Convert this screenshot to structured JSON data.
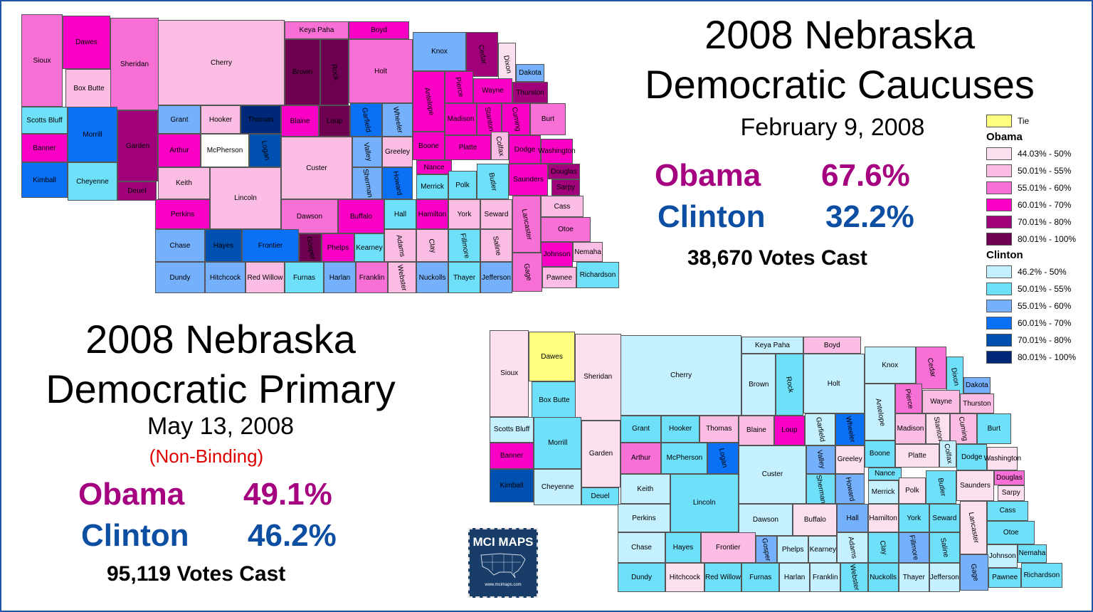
{
  "caucus": {
    "title_line1": "2008 Nebraska",
    "title_line2": "Democratic Caucuses",
    "date": "February 9, 2008",
    "obama_label": "Obama",
    "obama_pct": "67.6%",
    "clinton_label": "Clinton",
    "clinton_pct": "32.2%",
    "votes": "38,670 Votes Cast"
  },
  "primary": {
    "title_line1": "2008 Nebraska",
    "title_line2": "Democratic Primary",
    "date": "May 13, 2008",
    "note": "(Non-Binding)",
    "obama_label": "Obama",
    "obama_pct": "49.1%",
    "clinton_label": "Clinton",
    "clinton_pct": "46.2%",
    "votes": "95,119 Votes Cast"
  },
  "colors": {
    "obama_text": "#a5007f",
    "clinton_text": "#0b4ea2",
    "note_text": "#e00000",
    "border": "#1d56a8",
    "none": "#ffffff"
  },
  "legend": {
    "tie": {
      "label": "Tie",
      "color": "#ffff80"
    },
    "obama_heading": "Obama",
    "obama": [
      {
        "key": "O1",
        "label": "44.03% - 50%",
        "color": "#fde0f0"
      },
      {
        "key": "O2",
        "label": "50.01% - 55%",
        "color": "#fbbde3"
      },
      {
        "key": "O3",
        "label": "55.01% - 60%",
        "color": "#f870d6"
      },
      {
        "key": "O4",
        "label": "60.01% - 70%",
        "color": "#fa00c4"
      },
      {
        "key": "O5",
        "label": "70.01% - 80%",
        "color": "#a0007a"
      },
      {
        "key": "O6",
        "label": "80.01% - 100%",
        "color": "#6d0050"
      }
    ],
    "clinton_heading": "Clinton",
    "clinton": [
      {
        "key": "C1",
        "label": "46.2% - 50%",
        "color": "#c5f0ff"
      },
      {
        "key": "C2",
        "label": "50.01% - 55%",
        "color": "#6fe0fa"
      },
      {
        "key": "C3",
        "label": "55.01% - 60%",
        "color": "#74b0fb"
      },
      {
        "key": "C4",
        "label": "60.01% - 70%",
        "color": "#0a70f5"
      },
      {
        "key": "C5",
        "label": "70.01% - 80%",
        "color": "#0050b0"
      },
      {
        "key": "C6",
        "label": "80.01% - 100%",
        "color": "#002878"
      }
    ]
  },
  "logo": {
    "text": "MCI MAPS",
    "url": "www.mcimaps.com"
  },
  "counties": [
    {
      "name": "Sioux",
      "caucus": "O3",
      "primary": "O1"
    },
    {
      "name": "Dawes",
      "caucus": "O4",
      "primary": "T"
    },
    {
      "name": "Box Butte",
      "caucus": "O2",
      "primary": "C2"
    },
    {
      "name": "Sheridan",
      "caucus": "O3",
      "primary": "O1"
    },
    {
      "name": "Cherry",
      "caucus": "O2",
      "primary": "C1"
    },
    {
      "name": "Keya Paha",
      "caucus": "O3",
      "primary": "C1"
    },
    {
      "name": "Boyd",
      "caucus": "O4",
      "primary": "O2"
    },
    {
      "name": "Brown",
      "caucus": "O6",
      "primary": "C1"
    },
    {
      "name": "Rock",
      "caucus": "O6",
      "primary": "C2"
    },
    {
      "name": "Holt",
      "caucus": "O3",
      "primary": "C1"
    },
    {
      "name": "Knox",
      "caucus": "C3",
      "primary": "C1"
    },
    {
      "name": "Cedar",
      "caucus": "O5",
      "primary": "O3"
    },
    {
      "name": "Dixon",
      "caucus": "O1",
      "primary": "C2"
    },
    {
      "name": "Dakota",
      "caucus": "C3",
      "primary": "C3"
    },
    {
      "name": "Antelope",
      "caucus": "O4",
      "primary": "C1"
    },
    {
      "name": "Pierce",
      "caucus": "O4",
      "primary": "O3"
    },
    {
      "name": "Wayne",
      "caucus": "O4",
      "primary": "O2"
    },
    {
      "name": "Thurston",
      "caucus": "O5",
      "primary": "O2"
    },
    {
      "name": "Madison",
      "caucus": "O4",
      "primary": "O2"
    },
    {
      "name": "Stanton",
      "caucus": "O4",
      "primary": "O1"
    },
    {
      "name": "Cuming",
      "caucus": "O4",
      "primary": "O2"
    },
    {
      "name": "Burt",
      "caucus": "O3",
      "primary": "C2"
    },
    {
      "name": "Scotts Bluff",
      "caucus": "C2",
      "primary": "C1"
    },
    {
      "name": "Banner",
      "caucus": "O4",
      "primary": "O4"
    },
    {
      "name": "Kimball",
      "caucus": "C4",
      "primary": "C5"
    },
    {
      "name": "Morrill",
      "caucus": "C4",
      "primary": "C2"
    },
    {
      "name": "Cheyenne",
      "caucus": "C2",
      "primary": "C1"
    },
    {
      "name": "Garden",
      "caucus": "O5",
      "primary": "O1"
    },
    {
      "name": "Deuel",
      "caucus": "O5",
      "primary": "C2"
    },
    {
      "name": "Grant",
      "caucus": "C3",
      "primary": "C2"
    },
    {
      "name": "Hooker",
      "caucus": "O2",
      "primary": "C2"
    },
    {
      "name": "Thomas",
      "caucus": "C6",
      "primary": "O2"
    },
    {
      "name": "Blaine",
      "caucus": "O4",
      "primary": "O2"
    },
    {
      "name": "Loup",
      "caucus": "O6",
      "primary": "O4"
    },
    {
      "name": "Garfield",
      "caucus": "C4",
      "primary": "C1"
    },
    {
      "name": "Wheeler",
      "caucus": "C3",
      "primary": "C4"
    },
    {
      "name": "Arthur",
      "caucus": "O4",
      "primary": "O3"
    },
    {
      "name": "McPherson",
      "caucus": "none",
      "primary": "C2"
    },
    {
      "name": "Logan",
      "caucus": "C5",
      "primary": "C4"
    },
    {
      "name": "Custer",
      "caucus": "O2",
      "primary": "C1"
    },
    {
      "name": "Valley",
      "caucus": "C3",
      "primary": "C3"
    },
    {
      "name": "Greeley",
      "caucus": "O2",
      "primary": "O1"
    },
    {
      "name": "Boone",
      "caucus": "O4",
      "primary": "C2"
    },
    {
      "name": "Platte",
      "caucus": "O4",
      "primary": "O1"
    },
    {
      "name": "Colfax",
      "caucus": "O2",
      "primary": "C1"
    },
    {
      "name": "Dodge",
      "caucus": "O4",
      "primary": "C2"
    },
    {
      "name": "Washington",
      "caucus": "O4",
      "primary": "O1"
    },
    {
      "name": "Keith",
      "caucus": "O2",
      "primary": "C1"
    },
    {
      "name": "Sherman",
      "caucus": "C3",
      "primary": "C2"
    },
    {
      "name": "Howard",
      "caucus": "C4",
      "primary": "C3"
    },
    {
      "name": "Nance",
      "caucus": "O4",
      "primary": "C2"
    },
    {
      "name": "Merrick",
      "caucus": "C2",
      "primary": "C1"
    },
    {
      "name": "Polk",
      "caucus": "C2",
      "primary": "O1"
    },
    {
      "name": "Butler",
      "caucus": "C2",
      "primary": "C2"
    },
    {
      "name": "Saunders",
      "caucus": "O4",
      "primary": "O1"
    },
    {
      "name": "Douglas",
      "caucus": "O5",
      "primary": "O3"
    },
    {
      "name": "Sarpy",
      "caucus": "O5",
      "primary": "O1"
    },
    {
      "name": "Lincoln",
      "caucus": "O2",
      "primary": "C2"
    },
    {
      "name": "Perkins",
      "caucus": "O4",
      "primary": "C1"
    },
    {
      "name": "Dawson",
      "caucus": "O3",
      "primary": "C1"
    },
    {
      "name": "Buffalo",
      "caucus": "O4",
      "primary": "O1"
    },
    {
      "name": "Hall",
      "caucus": "C2",
      "primary": "C3"
    },
    {
      "name": "Hamilton",
      "caucus": "O4",
      "primary": "O1"
    },
    {
      "name": "York",
      "caucus": "O2",
      "primary": "C2"
    },
    {
      "name": "Seward",
      "caucus": "O2",
      "primary": "C2"
    },
    {
      "name": "Lancaster",
      "caucus": "O3",
      "primary": "O1"
    },
    {
      "name": "Cass",
      "caucus": "O2",
      "primary": "C2"
    },
    {
      "name": "Otoe",
      "caucus": "O3",
      "primary": "C2"
    },
    {
      "name": "Chase",
      "caucus": "C3",
      "primary": "C1"
    },
    {
      "name": "Hayes",
      "caucus": "C5",
      "primary": "C2"
    },
    {
      "name": "Frontier",
      "caucus": "C4",
      "primary": "O2"
    },
    {
      "name": "Gosper",
      "caucus": "O6",
      "primary": "C3"
    },
    {
      "name": "Phelps",
      "caucus": "O4",
      "primary": "C1"
    },
    {
      "name": "Kearney",
      "caucus": "C2",
      "primary": "C1"
    },
    {
      "name": "Adams",
      "caucus": "O2",
      "primary": "C1"
    },
    {
      "name": "Clay",
      "caucus": "O2",
      "primary": "C2"
    },
    {
      "name": "Fillmore",
      "caucus": "C2",
      "primary": "C3"
    },
    {
      "name": "Saline",
      "caucus": "O2",
      "primary": "C2"
    },
    {
      "name": "Johnson",
      "caucus": "O4",
      "primary": "C1"
    },
    {
      "name": "Nemaha",
      "caucus": "O2",
      "primary": "C2"
    },
    {
      "name": "Dundy",
      "caucus": "C3",
      "primary": "C2"
    },
    {
      "name": "Hitchcock",
      "caucus": "C3",
      "primary": "O1"
    },
    {
      "name": "Red Willow",
      "caucus": "O2",
      "primary": "C2"
    },
    {
      "name": "Furnas",
      "caucus": "C2",
      "primary": "C2"
    },
    {
      "name": "Harlan",
      "caucus": "C3",
      "primary": "C1"
    },
    {
      "name": "Franklin",
      "caucus": "O3",
      "primary": "C1"
    },
    {
      "name": "Webster",
      "caucus": "O2",
      "primary": "C2"
    },
    {
      "name": "Nuckolls",
      "caucus": "C3",
      "primary": "C2"
    },
    {
      "name": "Thayer",
      "caucus": "C2",
      "primary": "C1"
    },
    {
      "name": "Jefferson",
      "caucus": "C3",
      "primary": "C1"
    },
    {
      "name": "Gage",
      "caucus": "O3",
      "primary": "C3"
    },
    {
      "name": "Pawnee",
      "caucus": "O2",
      "primary": "C2"
    },
    {
      "name": "Richardson",
      "caucus": "C2",
      "primary": "C2"
    }
  ]
}
